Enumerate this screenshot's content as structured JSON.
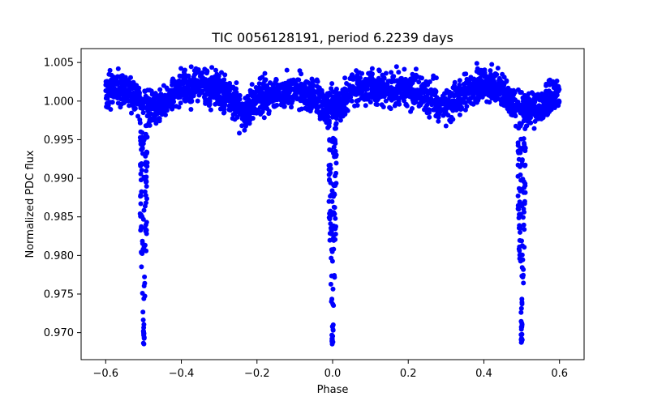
{
  "chart_data": {
    "type": "scatter",
    "title": "TIC 0056128191, period 6.2239 days",
    "xlabel": "Phase",
    "ylabel": "Normalized PDC flux",
    "xlim": [
      -0.665,
      0.665
    ],
    "ylim": [
      0.9665,
      1.0068
    ],
    "x_ticks": [
      -0.6,
      -0.4,
      -0.2,
      0.0,
      0.2,
      0.4,
      0.6
    ],
    "x_tick_labels": [
      "−0.6",
      "−0.4",
      "−0.2",
      "0.0",
      "0.2",
      "0.4",
      "0.6"
    ],
    "y_ticks": [
      0.97,
      0.975,
      0.98,
      0.985,
      0.99,
      0.995,
      1.0,
      1.005
    ],
    "y_tick_labels": [
      "0.970",
      "0.975",
      "0.980",
      "0.985",
      "0.990",
      "0.995",
      "1.000",
      "1.005"
    ],
    "grid": false,
    "marker_color": "#0000ff",
    "series": [
      {
        "baseline_trend": {
          "x": [
            -0.6,
            -0.55,
            -0.52,
            -0.48,
            -0.45,
            -0.4,
            -0.35,
            -0.3,
            -0.27,
            -0.24,
            -0.2,
            -0.15,
            -0.1,
            -0.05,
            -0.02,
            0.02,
            0.05,
            0.1,
            0.15,
            0.2,
            0.25,
            0.3,
            0.35,
            0.4,
            0.45,
            0.48,
            0.52,
            0.55,
            0.6
          ],
          "y": [
            1.0015,
            1.0015,
            1.0005,
            0.999,
            0.9995,
            1.0015,
            1.002,
            1.0015,
            1.0005,
            0.998,
            1.0005,
            1.001,
            1.0015,
            1.0005,
            0.999,
            0.9995,
            1.0015,
            1.002,
            1.0015,
            1.0015,
            1.0005,
            0.9995,
            1.001,
            1.0025,
            1.0015,
            0.9995,
            0.999,
            0.9995,
            1.001
          ]
        },
        "eclipses": [
          {
            "phase": -0.5,
            "min_flux": 0.9685
          },
          {
            "phase": 0.0,
            "min_flux": 0.9682
          },
          {
            "phase": 0.5,
            "min_flux": 0.9685
          }
        ],
        "scatter_amplitude": 0.0012
      }
    ]
  }
}
